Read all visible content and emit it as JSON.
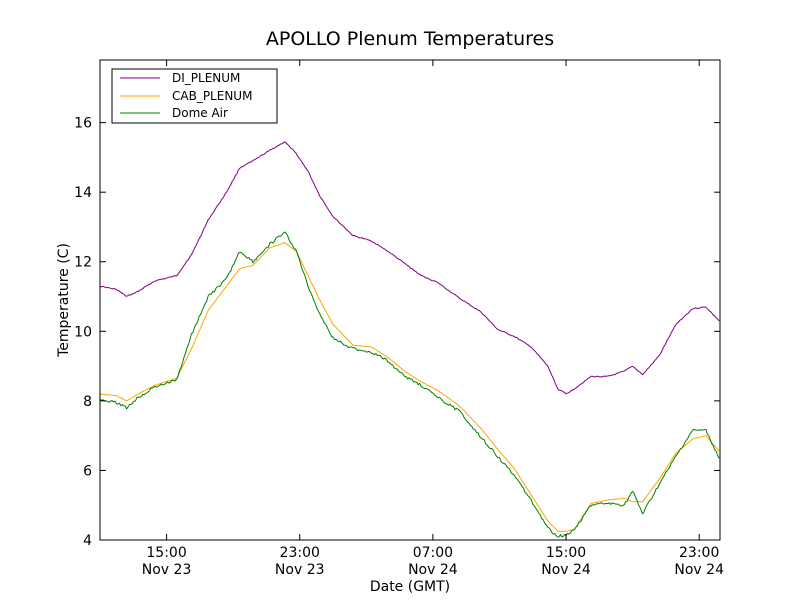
{
  "chart_data": {
    "type": "line",
    "title": "APOLLO Plenum Temperatures",
    "xlabel": "Date (GMT)",
    "ylabel": "Temperature (C)",
    "x_unit": "hours since Nov 23 11:00 GMT",
    "xlim": [
      0,
      37.25
    ],
    "ylim": [
      4,
      17.8
    ],
    "grid": false,
    "legend_position": "top-left",
    "yticks": [
      4,
      6,
      8,
      10,
      12,
      14,
      16
    ],
    "xticks": [
      {
        "x": 4,
        "time": "15:00",
        "date": "Nov 23"
      },
      {
        "x": 12,
        "time": "23:00",
        "date": "Nov 23"
      },
      {
        "x": 20,
        "time": "07:00",
        "date": "Nov 24"
      },
      {
        "x": 28,
        "time": "15:00",
        "date": "Nov 24"
      },
      {
        "x": 36,
        "time": "23:00",
        "date": "Nov 24"
      }
    ],
    "series": [
      {
        "name": "DI_PLENUM",
        "color": "#800080",
        "x": [
          0,
          1,
          1.6,
          2.3,
          3.3,
          4.6,
          5.5,
          6.5,
          7.6,
          8.4,
          9.2,
          10.2,
          11.1,
          11.8,
          12.5,
          13.2,
          14.0,
          15.2,
          16.3,
          17.3,
          18.3,
          19.3,
          20.3,
          21.6,
          22.9,
          23.9,
          24.9,
          25.9,
          26.9,
          27.5,
          28.0,
          28.5,
          29.5,
          30.5,
          31.5,
          32.0,
          32.6,
          33.6,
          34.6,
          35.6,
          36.4,
          37.2
        ],
        "values": [
          11.3,
          11.2,
          11.0,
          11.15,
          11.45,
          11.6,
          12.2,
          13.2,
          14.0,
          14.7,
          14.9,
          15.2,
          15.45,
          15.1,
          14.6,
          13.9,
          13.3,
          12.75,
          12.6,
          12.3,
          11.95,
          11.6,
          11.4,
          10.95,
          10.55,
          10.05,
          9.85,
          9.55,
          9.0,
          8.35,
          8.2,
          8.35,
          8.7,
          8.7,
          8.85,
          9.0,
          8.75,
          9.3,
          10.2,
          10.65,
          10.7,
          10.3
        ]
      },
      {
        "name": "CAB_PLENUM",
        "color": "#FFA500",
        "x": [
          0,
          1,
          1.6,
          2.3,
          3.3,
          4.6,
          5.5,
          6.5,
          7.6,
          8.4,
          9.2,
          10.2,
          11.1,
          11.8,
          12.5,
          13.2,
          14.0,
          15.2,
          16.3,
          17.3,
          18.3,
          19.3,
          20.3,
          21.6,
          22.9,
          23.9,
          24.9,
          25.9,
          26.9,
          27.5,
          28.0,
          28.5,
          29.5,
          30.5,
          31.5,
          32.0,
          32.6,
          33.6,
          34.6,
          35.6,
          36.4,
          37.2
        ],
        "values": [
          8.2,
          8.15,
          8.0,
          8.2,
          8.45,
          8.65,
          9.5,
          10.6,
          11.3,
          11.8,
          11.9,
          12.4,
          12.55,
          12.3,
          11.6,
          10.9,
          10.2,
          9.6,
          9.55,
          9.25,
          8.85,
          8.55,
          8.3,
          7.85,
          7.2,
          6.6,
          6.05,
          5.3,
          4.55,
          4.25,
          4.25,
          4.3,
          5.05,
          5.15,
          5.2,
          5.1,
          5.1,
          5.75,
          6.5,
          6.9,
          7.0,
          6.55
        ]
      },
      {
        "name": "Dome Air",
        "color": "#008000",
        "x": [
          0,
          1,
          1.6,
          2.3,
          3.3,
          4.6,
          5.5,
          6.5,
          7.6,
          8.4,
          9.2,
          10.2,
          11.1,
          11.8,
          12.5,
          13.2,
          14.0,
          15.2,
          16.3,
          17.3,
          18.3,
          19.3,
          20.3,
          21.6,
          22.9,
          23.9,
          24.9,
          25.9,
          26.9,
          27.5,
          28.0,
          28.5,
          29.5,
          30.5,
          31.5,
          32.0,
          32.6,
          33.6,
          34.6,
          35.6,
          36.4,
          37.2
        ],
        "values": [
          8.05,
          7.95,
          7.8,
          8.1,
          8.4,
          8.6,
          9.9,
          11.0,
          11.5,
          12.3,
          12.0,
          12.5,
          12.85,
          12.3,
          11.3,
          10.5,
          9.8,
          9.5,
          9.4,
          9.15,
          8.7,
          8.45,
          8.1,
          7.7,
          6.95,
          6.4,
          5.85,
          5.15,
          4.35,
          4.1,
          4.15,
          4.3,
          5.0,
          5.05,
          5.0,
          5.4,
          4.75,
          5.6,
          6.4,
          7.15,
          7.15,
          6.35
        ]
      }
    ]
  }
}
